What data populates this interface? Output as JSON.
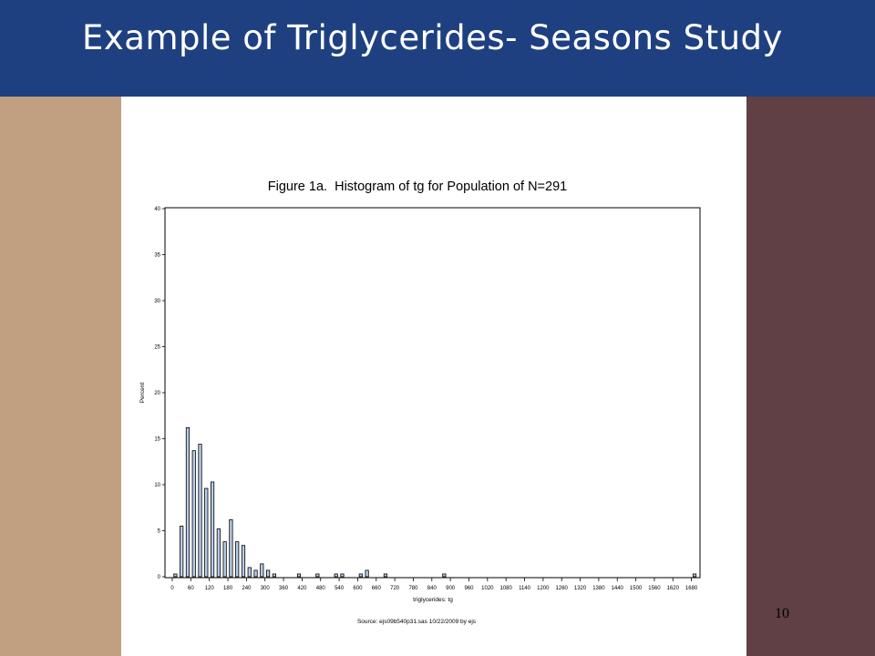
{
  "slide": {
    "title": "Example of Triglycerides- Seasons Study",
    "page_number": "10"
  },
  "colors": {
    "title_bar": "#1f4080",
    "left_panel": "#c0a080",
    "right_panel": "#604044",
    "bar_fill": "#b8cce8"
  },
  "chart_data": {
    "type": "bar",
    "title": "Figure 1a.  Histogram of tg for Population of N=291",
    "xlabel": "triglycerides: tg",
    "ylabel": "Percent",
    "footer": "Source: ejs09b540p31.sas 10/22/2009 by ejs",
    "bin_width": 10,
    "xlim": [
      0,
      1690
    ],
    "ylim": [
      0,
      40
    ],
    "grid": false,
    "x_ticks": [
      0,
      60,
      120,
      180,
      240,
      300,
      360,
      420,
      480,
      540,
      600,
      660,
      720,
      780,
      840,
      900,
      960,
      1020,
      1080,
      1140,
      1200,
      1260,
      1320,
      1380,
      1440,
      1500,
      1560,
      1620,
      1680
    ],
    "y_ticks": [
      0,
      5,
      10,
      15,
      20,
      25,
      30,
      35,
      40
    ],
    "bins": [
      {
        "x": 10,
        "value": 0.3
      },
      {
        "x": 30,
        "value": 5.5
      },
      {
        "x": 50,
        "value": 16.2
      },
      {
        "x": 70,
        "value": 13.7
      },
      {
        "x": 90,
        "value": 14.4
      },
      {
        "x": 110,
        "value": 9.6
      },
      {
        "x": 130,
        "value": 10.3
      },
      {
        "x": 150,
        "value": 5.2
      },
      {
        "x": 170,
        "value": 3.8
      },
      {
        "x": 190,
        "value": 6.2
      },
      {
        "x": 210,
        "value": 3.8
      },
      {
        "x": 230,
        "value": 3.4
      },
      {
        "x": 250,
        "value": 1.0
      },
      {
        "x": 270,
        "value": 0.7
      },
      {
        "x": 290,
        "value": 1.4
      },
      {
        "x": 310,
        "value": 0.7
      },
      {
        "x": 330,
        "value": 0.3
      },
      {
        "x": 410,
        "value": 0.3
      },
      {
        "x": 470,
        "value": 0.3
      },
      {
        "x": 530,
        "value": 0.3
      },
      {
        "x": 550,
        "value": 0.3
      },
      {
        "x": 610,
        "value": 0.3
      },
      {
        "x": 630,
        "value": 0.7
      },
      {
        "x": 690,
        "value": 0.3
      },
      {
        "x": 880,
        "value": 0.3
      },
      {
        "x": 1690,
        "value": 0.3
      }
    ]
  }
}
